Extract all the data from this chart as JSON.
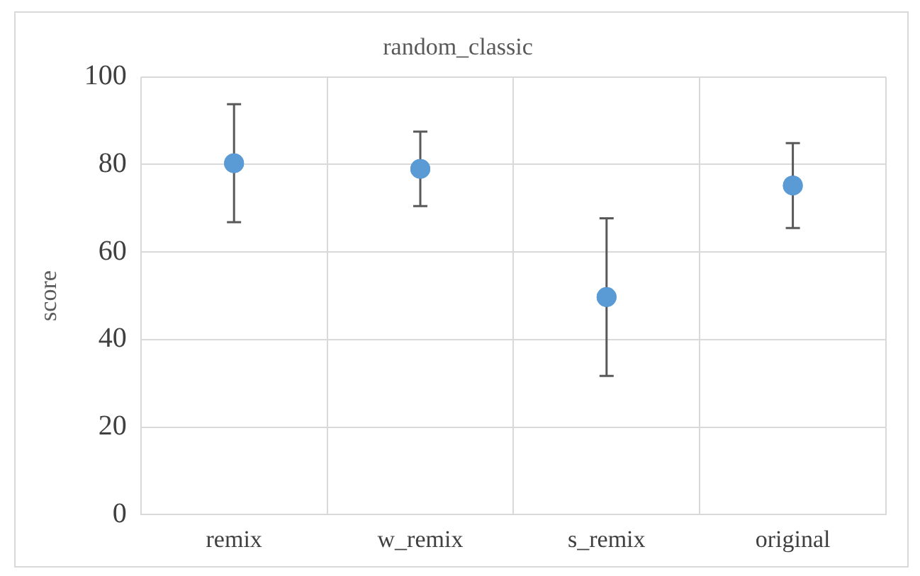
{
  "chart_data": {
    "type": "scatter",
    "title": "random_classic",
    "ylabel": "score",
    "categories": [
      "remix",
      "w_remix",
      "s_remix",
      "original"
    ],
    "values": [
      80.3,
      79,
      49.7,
      75.2
    ],
    "errors": [
      13.5,
      8.5,
      18,
      9.7
    ],
    "color": "#5b9bd5",
    "marker": "circle",
    "ylim": [
      0,
      100
    ],
    "yticks": [
      0,
      20,
      40,
      60,
      80,
      100
    ],
    "grid": true,
    "legend": false
  }
}
